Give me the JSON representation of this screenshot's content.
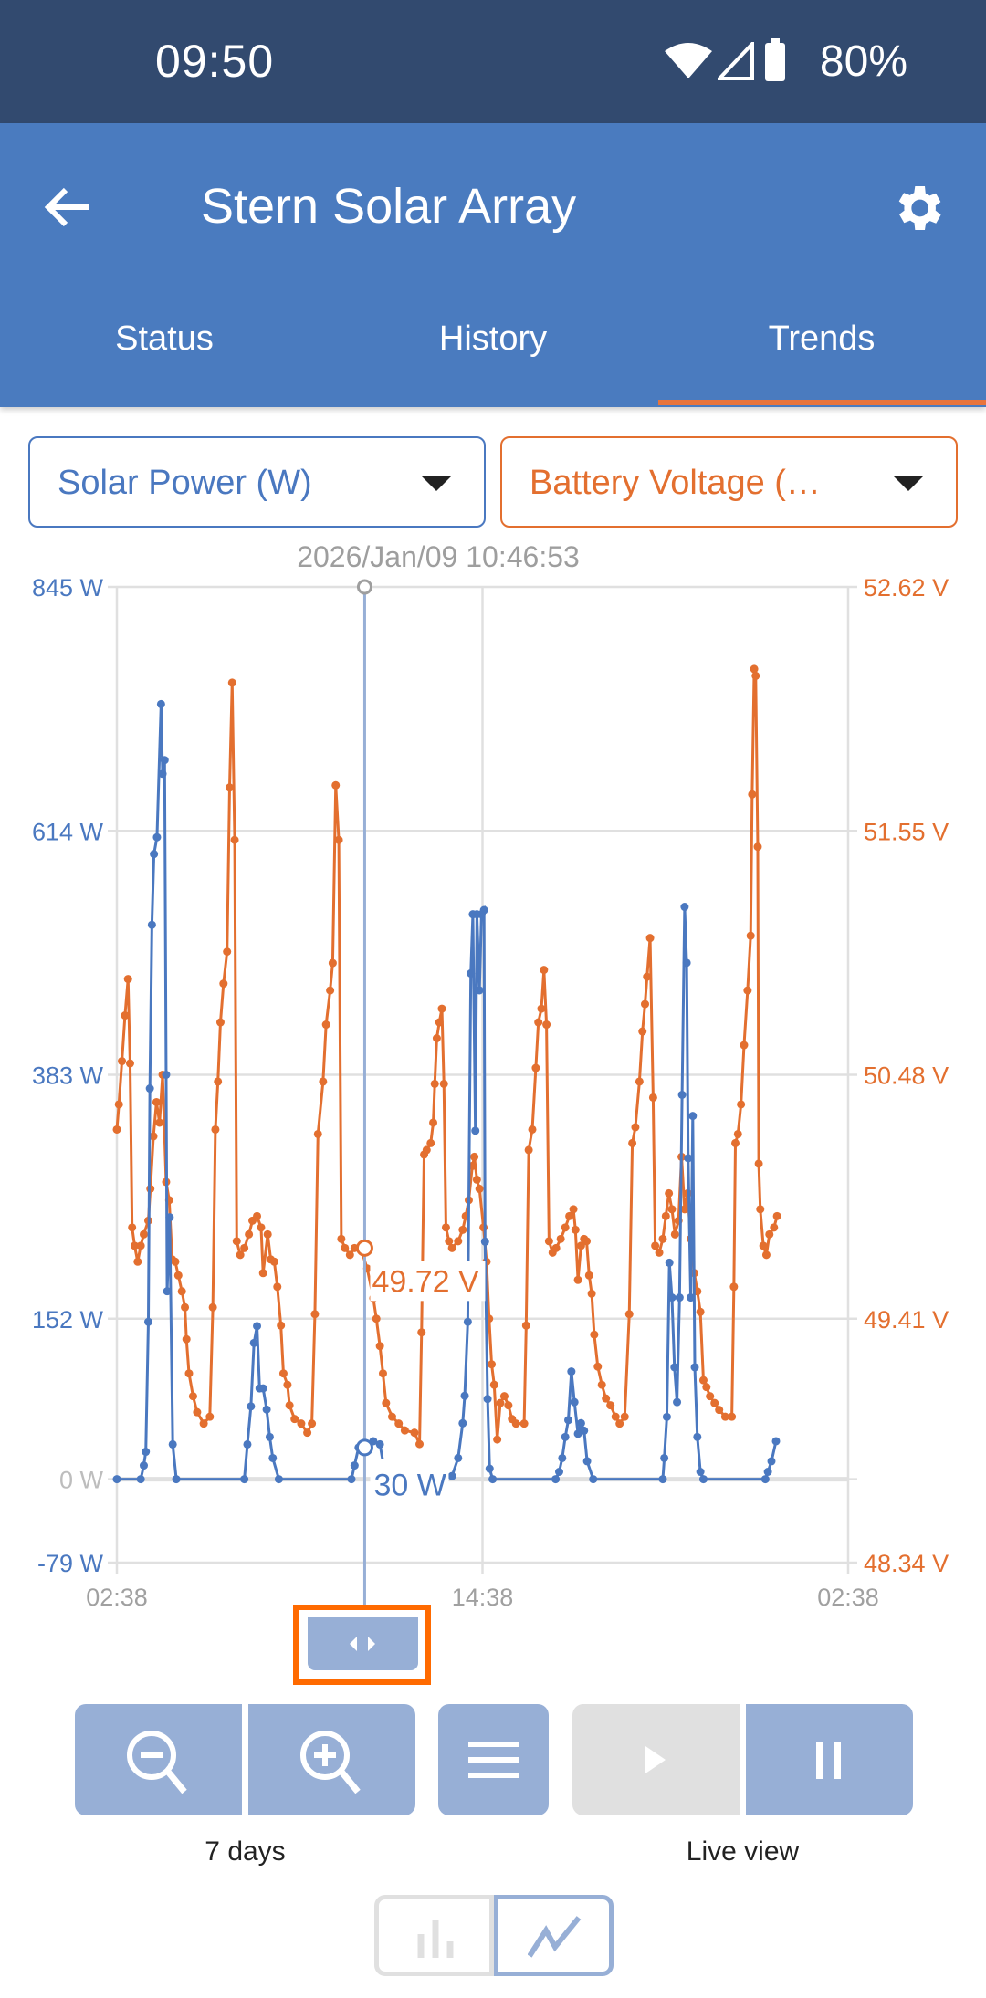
{
  "status_bar": {
    "time": "09:50",
    "battery": "80%",
    "icons": [
      "wifi-icon",
      "signal-icon",
      "battery-icon"
    ]
  },
  "header": {
    "title": "Stern Solar Array",
    "back_icon": "arrow-left-icon",
    "settings_icon": "gear-icon"
  },
  "tabs": [
    {
      "label": "Status"
    },
    {
      "label": "History"
    },
    {
      "label": "Trends",
      "active": true
    }
  ],
  "selectors": {
    "left": {
      "value": "Solar Power (W)",
      "color": "#4a78c0"
    },
    "right": {
      "value": "Battery Voltage (…",
      "color": "#e36f2f"
    }
  },
  "cursor": {
    "timestamp": "2026/Jan/09 10:46:53",
    "time": "10:46",
    "power_label": "30 W",
    "power": 30,
    "voltage_label": "49.72 V",
    "voltage": 49.72
  },
  "controls": {
    "range_label": "7 days",
    "live_label": "Live view",
    "play_enabled": false,
    "chart_mode": "line"
  },
  "colors": {
    "accent": "#e8743b",
    "header": "#4a7bbf",
    "status_bar": "#324a6f",
    "button": "#97afd6",
    "power": "#4a78c0",
    "voltage": "#e36f2f"
  },
  "chart_data": {
    "type": "line",
    "x_ticks": [
      "02:38",
      "14:38",
      "02:38"
    ],
    "x_range": [
      "02:38",
      "02:38 (+1 day)"
    ],
    "y_left": {
      "ticks": [
        "845 W",
        "614 W",
        "383 W",
        "152 W",
        "0 W",
        "-79 W"
      ],
      "range": [
        -79,
        845
      ],
      "unit": "W"
    },
    "y_right": {
      "ticks": [
        "52.62 V",
        "51.55 V",
        "50.48 V",
        "49.41 V",
        "48.34 V"
      ],
      "range": [
        48.34,
        52.62
      ],
      "unit": "V"
    },
    "grid": true,
    "series": [
      {
        "name": "Solar Power (W)",
        "axis": "left",
        "color": "#4a78c0",
        "points": [
          [
            "02:38",
            0
          ],
          [
            "03:25",
            0
          ],
          [
            "03:31",
            13
          ],
          [
            "03:35",
            26
          ],
          [
            "03:40",
            149
          ],
          [
            "03:43",
            370
          ],
          [
            "03:47",
            525
          ],
          [
            "03:51",
            592
          ],
          [
            "03:57",
            608
          ],
          [
            "04:05",
            734
          ],
          [
            "04:08",
            668
          ],
          [
            "04:12",
            681
          ],
          [
            "04:15",
            383
          ],
          [
            "04:17",
            178
          ],
          [
            "04:22",
            248
          ],
          [
            "04:28",
            33
          ],
          [
            "04:35",
            0
          ],
          [
            "06:49",
            0
          ],
          [
            "06:55",
            33
          ],
          [
            "07:02",
            69
          ],
          [
            "07:08",
            129
          ],
          [
            "07:14",
            145
          ],
          [
            "07:19",
            86
          ],
          [
            "07:26",
            86
          ],
          [
            "07:33",
            66
          ],
          [
            "07:39",
            40
          ],
          [
            "07:45",
            20
          ],
          [
            "07:57",
            0
          ],
          [
            "10:20",
            0
          ],
          [
            "10:26",
            13
          ],
          [
            "10:34",
            30
          ],
          [
            "10:51",
            33
          ],
          [
            "11:03",
            36
          ],
          [
            "11:16",
            33
          ],
          [
            "11:28",
            0
          ],
          [
            "13:38",
            3
          ],
          [
            "13:50",
            20
          ],
          [
            "13:59",
            53
          ],
          [
            "14:03",
            79
          ],
          [
            "14:09",
            149
          ],
          [
            "14:15",
            479
          ],
          [
            "14:19",
            535
          ],
          [
            "14:24",
            330
          ],
          [
            "14:27",
            535
          ],
          [
            "14:32",
            463
          ],
          [
            "14:36",
            535
          ],
          [
            "14:41",
            539
          ],
          [
            "14:43",
            225
          ],
          [
            "14:48",
            76
          ],
          [
            "14:52",
            10
          ],
          [
            "14:58",
            0
          ],
          [
            "17:02",
            0
          ],
          [
            "17:09",
            7
          ],
          [
            "17:15",
            20
          ],
          [
            "17:21",
            40
          ],
          [
            "17:27",
            56
          ],
          [
            "17:33",
            102
          ],
          [
            "17:39",
            73
          ],
          [
            "17:46",
            43
          ],
          [
            "17:52",
            53
          ],
          [
            "17:58",
            46
          ],
          [
            "18:04",
            17
          ],
          [
            "18:16",
            0
          ],
          [
            "20:33",
            0
          ],
          [
            "20:36",
            20
          ],
          [
            "20:41",
            59
          ],
          [
            "20:46",
            205
          ],
          [
            "20:51",
            172
          ],
          [
            "20:56",
            106
          ],
          [
            "21:01",
            73
          ],
          [
            "21:06",
            172
          ],
          [
            "21:11",
            364
          ],
          [
            "21:16",
            542
          ],
          [
            "21:20",
            489
          ],
          [
            "21:23",
            304
          ],
          [
            "21:28",
            172
          ],
          [
            "21:32",
            344
          ],
          [
            "21:36",
            106
          ],
          [
            "21:41",
            40
          ],
          [
            "21:47",
            7
          ],
          [
            "21:53",
            0
          ],
          [
            "23:55",
            0
          ],
          [
            "00:00",
            7
          ],
          [
            "00:07",
            17
          ],
          [
            "00:16",
            36
          ]
        ]
      },
      {
        "name": "Battery Voltage (V)",
        "axis": "right",
        "color": "#e36f2f",
        "points": [
          [
            "02:38",
            50.24
          ],
          [
            "02:42",
            50.35
          ],
          [
            "02:48",
            50.54
          ],
          [
            "02:54",
            50.74
          ],
          [
            "03:00",
            50.9
          ],
          [
            "03:04",
            50.53
          ],
          [
            "03:08",
            49.81
          ],
          [
            "03:13",
            49.73
          ],
          [
            "03:19",
            49.66
          ],
          [
            "03:25",
            49.73
          ],
          [
            "03:31",
            49.78
          ],
          [
            "03:40",
            49.84
          ],
          [
            "03:44",
            49.98
          ],
          [
            "03:50",
            50.21
          ],
          [
            "03:56",
            50.36
          ],
          [
            "04:02",
            50.27
          ],
          [
            "04:08",
            50.48
          ],
          [
            "04:15",
            50.01
          ],
          [
            "04:21",
            49.93
          ],
          [
            "04:27",
            49.67
          ],
          [
            "04:33",
            49.66
          ],
          [
            "04:39",
            49.6
          ],
          [
            "04:46",
            49.53
          ],
          [
            "04:52",
            49.46
          ],
          [
            "04:55",
            49.32
          ],
          [
            "05:00",
            49.17
          ],
          [
            "05:08",
            49.07
          ],
          [
            "05:16",
            49.0
          ],
          [
            "05:29",
            48.95
          ],
          [
            "05:41",
            48.98
          ],
          [
            "05:47",
            49.46
          ],
          [
            "05:52",
            50.24
          ],
          [
            "05:57",
            50.45
          ],
          [
            "06:02",
            50.71
          ],
          [
            "06:08",
            50.88
          ],
          [
            "06:15",
            51.02
          ],
          [
            "06:20",
            51.74
          ],
          [
            "06:25",
            52.2
          ],
          [
            "06:30",
            51.51
          ],
          [
            "06:34",
            49.75
          ],
          [
            "06:41",
            49.69
          ],
          [
            "06:49",
            49.72
          ],
          [
            "06:58",
            49.78
          ],
          [
            "07:05",
            49.84
          ],
          [
            "07:14",
            49.86
          ],
          [
            "07:22",
            49.81
          ],
          [
            "07:26",
            49.61
          ],
          [
            "07:35",
            49.78
          ],
          [
            "07:41",
            49.67
          ],
          [
            "07:48",
            49.66
          ],
          [
            "07:54",
            49.55
          ],
          [
            "08:01",
            49.38
          ],
          [
            "08:06",
            49.17
          ],
          [
            "08:14",
            49.12
          ],
          [
            "08:18",
            49.03
          ],
          [
            "08:28",
            48.97
          ],
          [
            "08:41",
            48.95
          ],
          [
            "08:53",
            48.91
          ],
          [
            "09:02",
            48.95
          ],
          [
            "09:08",
            49.43
          ],
          [
            "09:14",
            50.22
          ],
          [
            "09:24",
            50.45
          ],
          [
            "09:30",
            50.7
          ],
          [
            "09:38",
            50.85
          ],
          [
            "09:43",
            50.97
          ],
          [
            "09:49",
            51.75
          ],
          [
            "09:55",
            51.51
          ],
          [
            "10:00",
            49.76
          ],
          [
            "10:07",
            49.72
          ],
          [
            "10:17",
            49.69
          ],
          [
            "10:26",
            49.72
          ],
          [
            "10:38",
            49.72
          ],
          [
            "10:51",
            49.63
          ],
          [
            "11:03",
            49.5
          ],
          [
            "11:09",
            49.41
          ],
          [
            "11:16",
            49.29
          ],
          [
            "11:22",
            49.17
          ],
          [
            "11:28",
            49.04
          ],
          [
            "11:40",
            48.98
          ],
          [
            "11:53",
            48.95
          ],
          [
            "12:05",
            48.92
          ],
          [
            "12:24",
            48.91
          ],
          [
            "12:34",
            48.86
          ],
          [
            "12:38",
            49.35
          ],
          [
            "12:43",
            50.13
          ],
          [
            "12:48",
            50.15
          ],
          [
            "12:56",
            50.18
          ],
          [
            "13:01",
            50.27
          ],
          [
            "13:04",
            50.44
          ],
          [
            "13:08",
            50.64
          ],
          [
            "13:13",
            50.71
          ],
          [
            "13:18",
            50.77
          ],
          [
            "13:22",
            50.44
          ],
          [
            "13:26",
            49.81
          ],
          [
            "13:32",
            49.75
          ],
          [
            "13:38",
            49.72
          ],
          [
            "13:50",
            49.75
          ],
          [
            "13:59",
            49.8
          ],
          [
            "14:05",
            49.86
          ],
          [
            "14:11",
            49.93
          ],
          [
            "14:18",
            50.08
          ],
          [
            "14:22",
            50.12
          ],
          [
            "14:27",
            50.02
          ],
          [
            "14:32",
            49.98
          ],
          [
            "14:40",
            49.81
          ],
          [
            "14:46",
            49.66
          ],
          [
            "14:51",
            49.41
          ],
          [
            "14:56",
            49.21
          ],
          [
            "15:01",
            49.12
          ],
          [
            "15:07",
            48.88
          ],
          [
            "15:13",
            49.04
          ],
          [
            "15:21",
            49.07
          ],
          [
            "15:29",
            49.03
          ],
          [
            "15:36",
            48.97
          ],
          [
            "15:44",
            48.95
          ],
          [
            "16:00",
            48.95
          ],
          [
            "16:04",
            49.38
          ],
          [
            "16:09",
            50.15
          ],
          [
            "16:16",
            50.24
          ],
          [
            "16:23",
            50.51
          ],
          [
            "16:28",
            50.71
          ],
          [
            "16:34",
            50.77
          ],
          [
            "16:39",
            50.94
          ],
          [
            "16:44",
            50.7
          ],
          [
            "16:49",
            49.75
          ],
          [
            "16:56",
            49.7
          ],
          [
            "17:03",
            49.72
          ],
          [
            "17:12",
            49.76
          ],
          [
            "17:21",
            49.81
          ],
          [
            "17:29",
            49.86
          ],
          [
            "17:37",
            49.89
          ],
          [
            "17:41",
            49.8
          ],
          [
            "17:46",
            49.58
          ],
          [
            "17:52",
            49.73
          ],
          [
            "17:58",
            49.76
          ],
          [
            "18:03",
            49.75
          ],
          [
            "18:08",
            49.6
          ],
          [
            "18:13",
            49.52
          ],
          [
            "18:18",
            49.34
          ],
          [
            "18:25",
            49.2
          ],
          [
            "18:33",
            49.12
          ],
          [
            "18:41",
            49.06
          ],
          [
            "18:50",
            49.03
          ],
          [
            "19:00",
            48.98
          ],
          [
            "19:08",
            48.95
          ],
          [
            "19:18",
            48.98
          ],
          [
            "19:27",
            49.43
          ],
          [
            "19:33",
            50.18
          ],
          [
            "19:39",
            50.25
          ],
          [
            "19:47",
            50.45
          ],
          [
            "19:53",
            50.67
          ],
          [
            "19:58",
            50.79
          ],
          [
            "20:02",
            50.91
          ],
          [
            "20:08",
            51.08
          ],
          [
            "20:14",
            50.38
          ],
          [
            "20:18",
            49.73
          ],
          [
            "20:26",
            49.7
          ],
          [
            "20:33",
            49.76
          ],
          [
            "20:39",
            49.86
          ],
          [
            "20:45",
            49.96
          ],
          [
            "20:51",
            49.89
          ],
          [
            "20:57",
            49.78
          ],
          [
            "21:04",
            49.84
          ],
          [
            "21:10",
            50.12
          ],
          [
            "21:16",
            49.89
          ],
          [
            "21:22",
            49.96
          ],
          [
            "21:28",
            49.76
          ],
          [
            "21:35",
            49.61
          ],
          [
            "21:41",
            49.53
          ],
          [
            "21:47",
            49.44
          ],
          [
            "21:53",
            49.14
          ],
          [
            "21:59",
            49.11
          ],
          [
            "22:06",
            49.07
          ],
          [
            "22:15",
            49.04
          ],
          [
            "22:24",
            49.01
          ],
          [
            "22:36",
            48.98
          ],
          [
            "22:49",
            48.98
          ],
          [
            "22:53",
            49.55
          ],
          [
            "22:56",
            50.18
          ],
          [
            "23:01",
            50.22
          ],
          [
            "23:07",
            50.35
          ],
          [
            "23:13",
            50.61
          ],
          [
            "23:20",
            50.85
          ],
          [
            "23:26",
            51.09
          ],
          [
            "23:29",
            51.71
          ],
          [
            "23:33",
            52.26
          ],
          [
            "23:36",
            52.23
          ],
          [
            "23:40",
            51.48
          ],
          [
            "23:42",
            50.09
          ],
          [
            "23:45",
            49.89
          ],
          [
            "23:51",
            49.73
          ],
          [
            "23:57",
            49.69
          ],
          [
            "00:03",
            49.78
          ],
          [
            "00:12",
            49.81
          ],
          [
            "00:18",
            49.86
          ]
        ]
      }
    ]
  }
}
